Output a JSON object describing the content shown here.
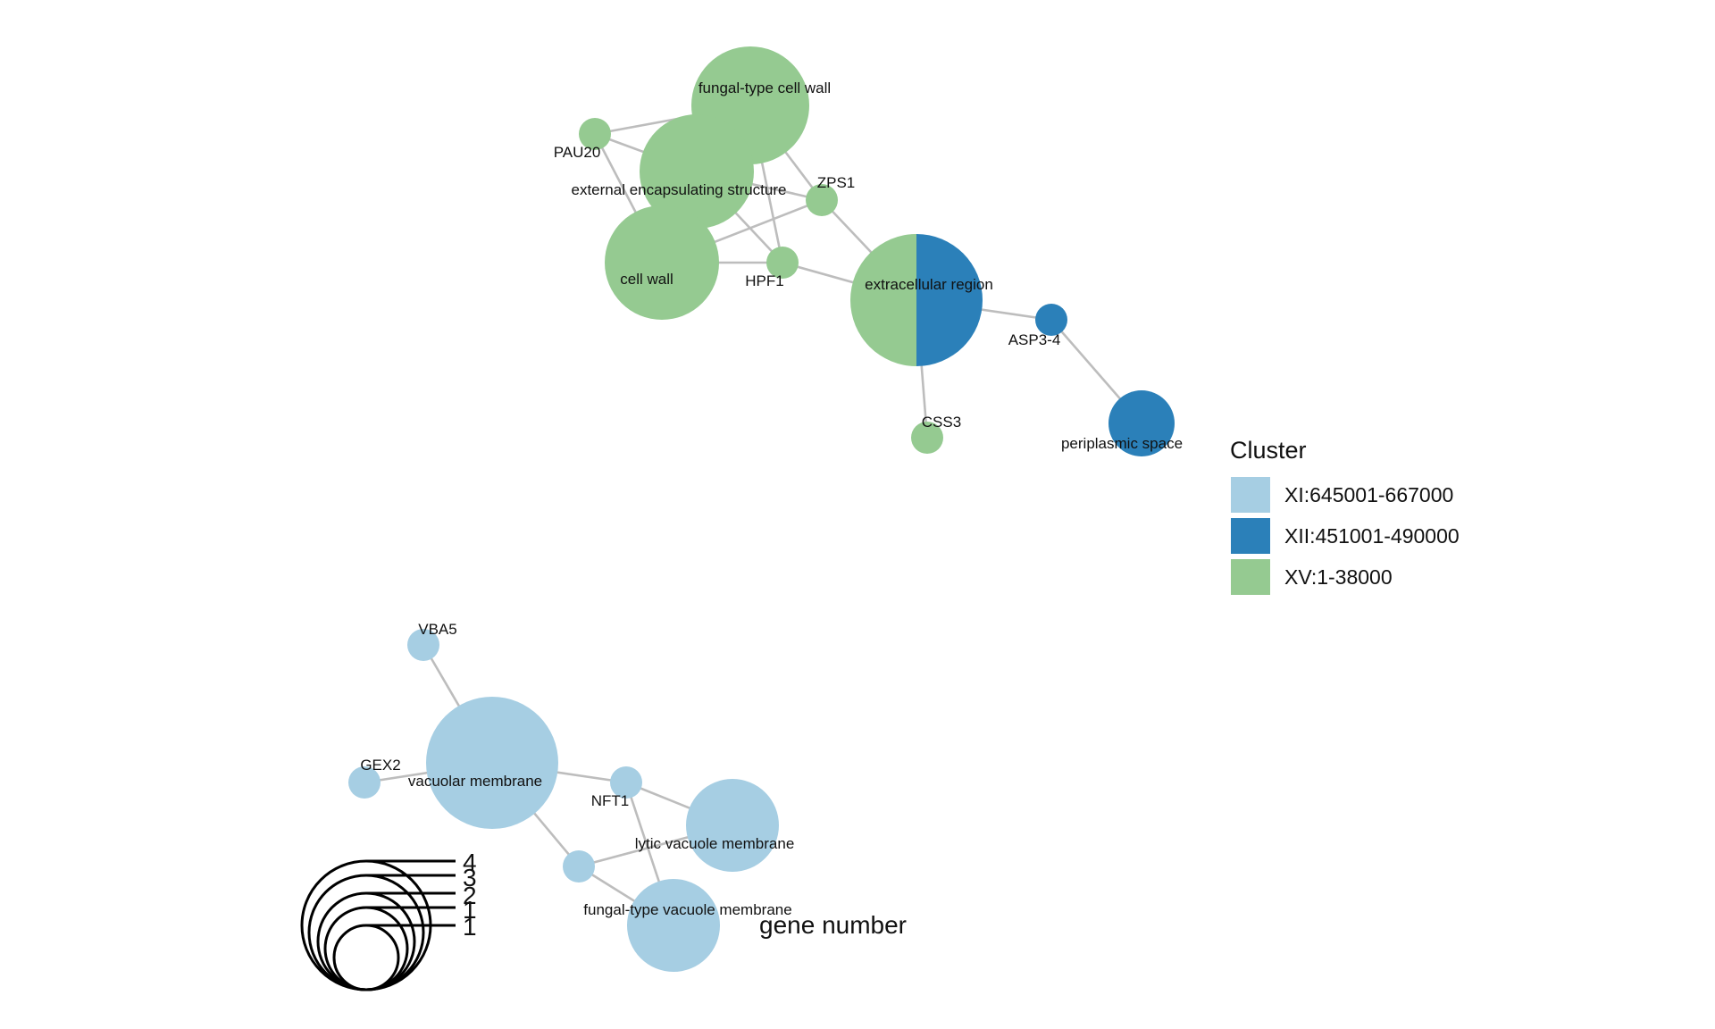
{
  "colors": {
    "edge": "#bdbdbd",
    "background": "#ffffff",
    "XI": "#a6cee3",
    "XII": "#2b80b9",
    "XV": "#95ca91"
  },
  "network": {
    "nodes": [
      {
        "id": "fungal_cell_wall",
        "label": "fungal-type cell wall",
        "clusters": [
          "XV"
        ]
      },
      {
        "id": "pau20",
        "label": "PAU20",
        "clusters": [
          "XV"
        ]
      },
      {
        "id": "ext_encaps",
        "label": "external encapsulating structure",
        "clusters": [
          "XV"
        ]
      },
      {
        "id": "zps1",
        "label": "ZPS1",
        "clusters": [
          "XV"
        ]
      },
      {
        "id": "cell_wall",
        "label": "cell wall",
        "clusters": [
          "XV"
        ]
      },
      {
        "id": "hpf1",
        "label": "HPF1",
        "clusters": [
          "XV"
        ]
      },
      {
        "id": "extracellular",
        "label": "extracellular region",
        "clusters": [
          "XV",
          "XII"
        ]
      },
      {
        "id": "asp3_4",
        "label": "ASP3-4",
        "clusters": [
          "XII"
        ]
      },
      {
        "id": "css3",
        "label": "CSS3",
        "clusters": [
          "XV"
        ]
      },
      {
        "id": "periplasmic",
        "label": "periplasmic space",
        "clusters": [
          "XII"
        ]
      },
      {
        "id": "vba5",
        "label": "VBA5",
        "clusters": [
          "XI"
        ]
      },
      {
        "id": "vacuolar_membrane",
        "label": "vacuolar membrane",
        "clusters": [
          "XI"
        ]
      },
      {
        "id": "gex2",
        "label": "GEX2",
        "clusters": [
          "XI"
        ]
      },
      {
        "id": "nft1",
        "label": "NFT1",
        "clusters": [
          "XI"
        ]
      },
      {
        "id": "lytic_vac",
        "label": "lytic vacuole membrane",
        "clusters": [
          "XI"
        ]
      },
      {
        "id": "unlabeled_gene",
        "label": "",
        "clusters": [
          "XI"
        ]
      },
      {
        "id": "fungal_vac",
        "label": "fungal-type vacuole membrane",
        "clusters": [
          "XI"
        ]
      }
    ],
    "edges": [
      [
        "pau20",
        "fungal_cell_wall"
      ],
      [
        "pau20",
        "ext_encaps"
      ],
      [
        "pau20",
        "cell_wall"
      ],
      [
        "fungal_cell_wall",
        "zps1"
      ],
      [
        "fungal_cell_wall",
        "hpf1"
      ],
      [
        "ext_encaps",
        "zps1"
      ],
      [
        "ext_encaps",
        "hpf1"
      ],
      [
        "cell_wall",
        "zps1"
      ],
      [
        "cell_wall",
        "hpf1"
      ],
      [
        "zps1",
        "extracellular"
      ],
      [
        "hpf1",
        "extracellular"
      ],
      [
        "extracellular",
        "asp3_4"
      ],
      [
        "extracellular",
        "css3"
      ],
      [
        "asp3_4",
        "periplasmic"
      ],
      [
        "vba5",
        "vacuolar_membrane"
      ],
      [
        "gex2",
        "vacuolar_membrane"
      ],
      [
        "vacuolar_membrane",
        "nft1"
      ],
      [
        "vacuolar_membrane",
        "unlabeled_gene"
      ],
      [
        "nft1",
        "lytic_vac"
      ],
      [
        "nft1",
        "fungal_vac"
      ],
      [
        "unlabeled_gene",
        "lytic_vac"
      ],
      [
        "unlabeled_gene",
        "fungal_vac"
      ]
    ]
  },
  "legend": {
    "title": "Cluster",
    "items": [
      {
        "key": "XI",
        "label": "XI:645001-667000"
      },
      {
        "key": "XII",
        "label": "XII:451001-490000"
      },
      {
        "key": "XV",
        "label": "XV:1-38000"
      }
    ]
  },
  "size_legend": {
    "title": "gene number",
    "ticks": [
      "4",
      "3",
      "2",
      "1",
      "1"
    ]
  }
}
